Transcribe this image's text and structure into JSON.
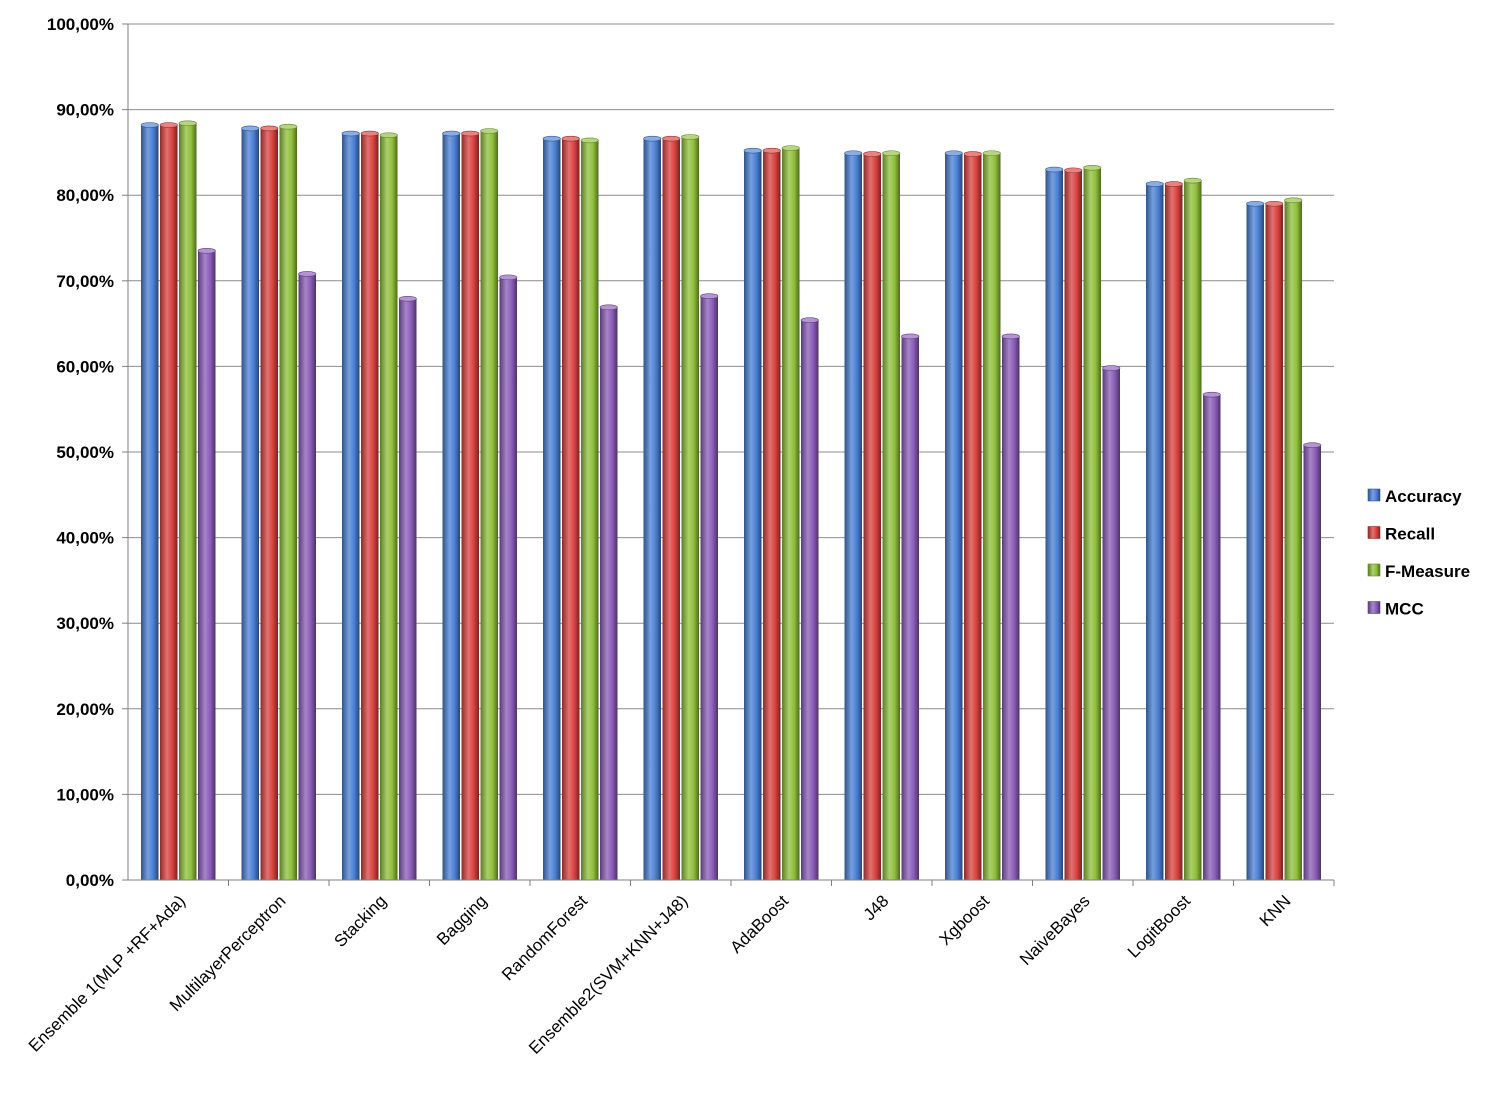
{
  "chart_data": {
    "type": "bar",
    "categories": [
      "Ensemble 1(MLP +RF+Ada)",
      "MultilayerPerceptron",
      "Stacking",
      "Bagging",
      "RandomForest",
      "Ensemble2(SVM+KNN+J48)",
      "AdaBoost",
      "J48",
      "Xgboost",
      "NaiveBayes",
      "LogitBoost",
      "KNN"
    ],
    "series": [
      {
        "name": "Accuracy",
        "color": "#4a7fd4",
        "values": [
          88.2,
          87.8,
          87.2,
          87.2,
          86.6,
          86.6,
          85.2,
          84.9,
          84.9,
          83.0,
          81.3,
          79.0
        ]
      },
      {
        "name": "Recall",
        "color": "#d9423f",
        "values": [
          88.2,
          87.8,
          87.2,
          87.2,
          86.6,
          86.6,
          85.2,
          84.8,
          84.8,
          82.9,
          81.3,
          79.0
        ]
      },
      {
        "name": "F-Measure",
        "color": "#8fbf3a",
        "values": [
          88.4,
          88.0,
          87.0,
          87.5,
          86.4,
          86.8,
          85.5,
          84.9,
          84.9,
          83.2,
          81.7,
          79.4
        ]
      },
      {
        "name": "MCC",
        "color": "#8a5cb8",
        "values": [
          73.5,
          70.8,
          67.9,
          70.4,
          66.9,
          68.2,
          65.4,
          63.5,
          63.5,
          59.8,
          56.7,
          50.8
        ]
      }
    ],
    "yticks": [
      "0,00%",
      "10,00%",
      "20,00%",
      "30,00%",
      "40,00%",
      "50,00%",
      "60,00%",
      "70,00%",
      "80,00%",
      "90,00%",
      "100,00%"
    ],
    "ylim": [
      0,
      100
    ],
    "grid": true,
    "legend_position": "right",
    "title": "",
    "xlabel": "",
    "ylabel": ""
  }
}
